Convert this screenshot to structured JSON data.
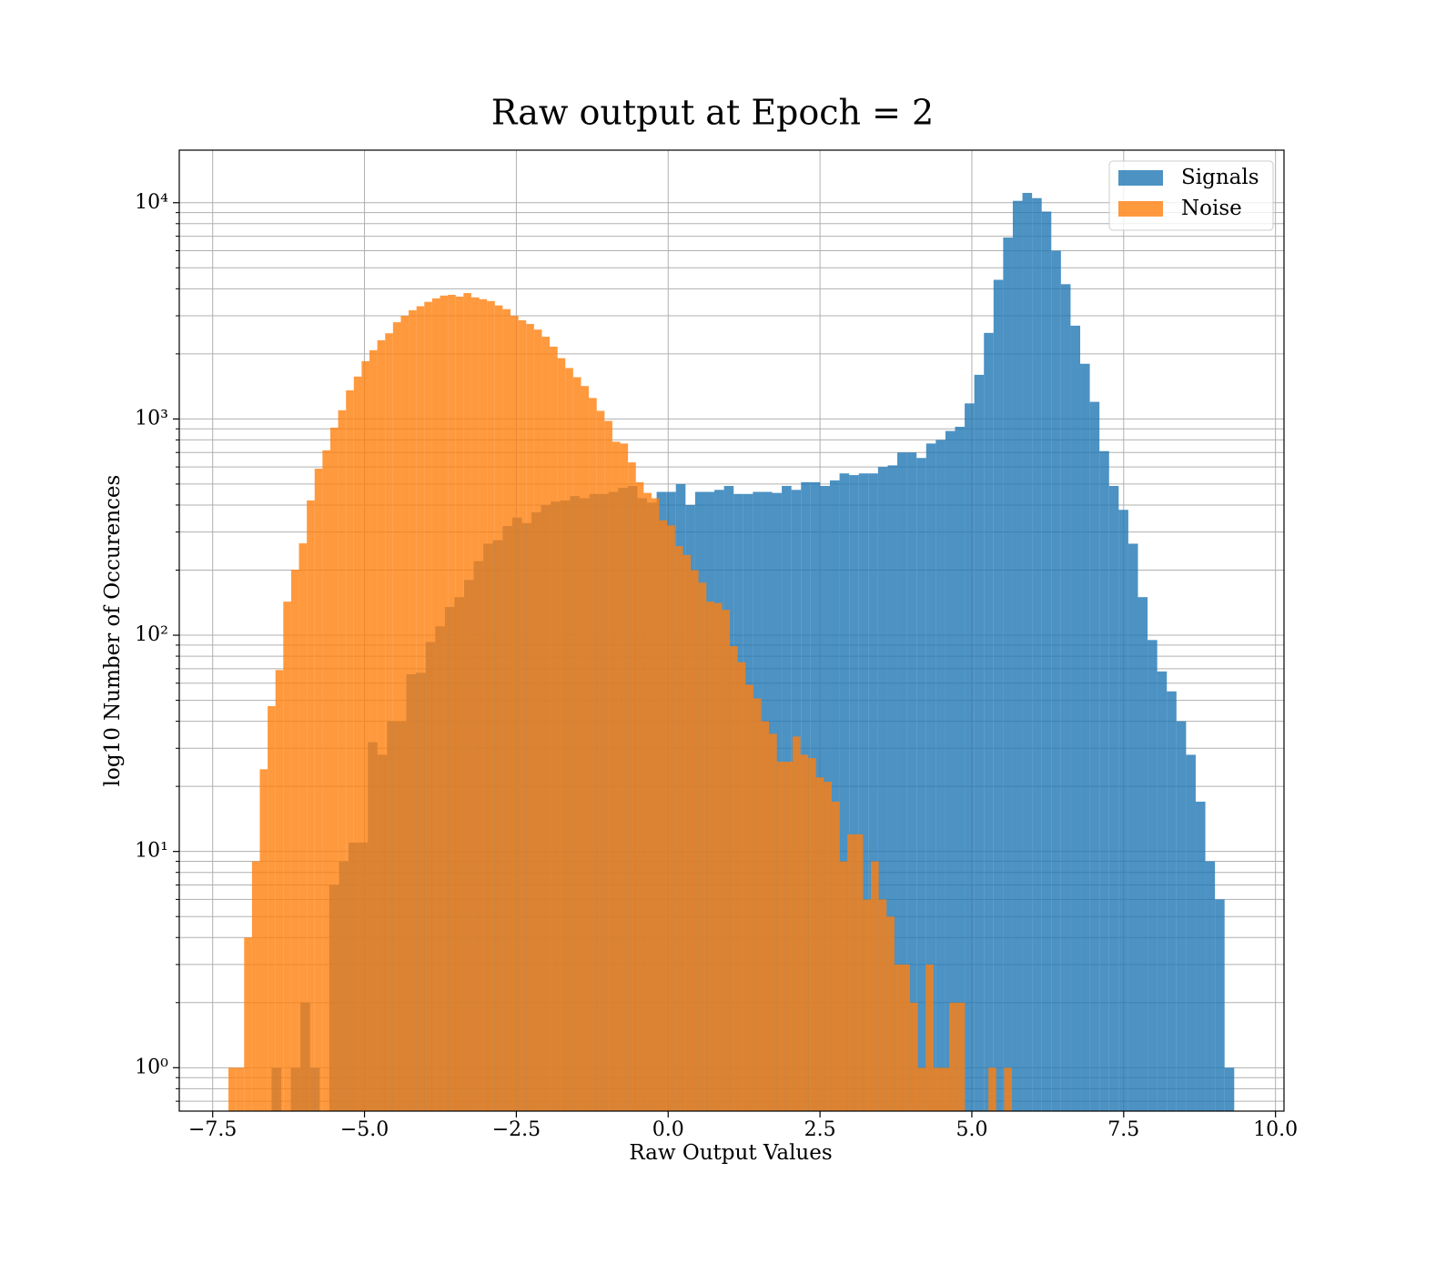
{
  "chart_data": {
    "type": "histogram",
    "title": "Raw output at Epoch = 2",
    "x_label": "Raw Output Values",
    "y_label": "log10 Number of Occurences",
    "xlim": [
      -8.05,
      10.14
    ],
    "ylim": [
      0.63,
      17500
    ],
    "log_y": true,
    "grid": true,
    "legend": "upper right",
    "alpha": 0.8,
    "xticks": [
      {
        "value": -7.5,
        "label": "−7.5"
      },
      {
        "value": -5,
        "label": "−5.0"
      },
      {
        "value": -2.5,
        "label": "−2.5"
      },
      {
        "value": 0,
        "label": "0.0"
      },
      2.5,
      {
        "value": 5,
        "label": "5.0"
      },
      7.5,
      {
        "value": 10,
        "label": "10.0"
      }
    ],
    "yticks": [
      {
        "value": 1,
        "label": "10⁰"
      },
      {
        "value": 10,
        "label": "10¹"
      },
      {
        "value": 100,
        "label": "10²"
      },
      {
        "value": 1000,
        "label": "10³"
      },
      {
        "value": 10000,
        "label": "10⁴"
      }
    ],
    "yminorticks": [
      0.7,
      0.8,
      0.9,
      2,
      3,
      4,
      5,
      6,
      7,
      8,
      9,
      20,
      30,
      40,
      50,
      60,
      70,
      80,
      90,
      200,
      300,
      400,
      500,
      600,
      700,
      800,
      900,
      2000,
      3000,
      4000,
      5000,
      6000,
      7000,
      8000,
      9000
    ],
    "series": [
      {
        "name": "Signals",
        "color": "#1f77b4",
        "bins": [
          -6.53,
          -6.3715,
          -6.213,
          -6.0545,
          -5.896,
          -5.7375,
          -5.579,
          -5.4205,
          -5.262,
          -5.1035,
          -4.945,
          -4.7865,
          -4.628,
          -4.4695,
          -4.311,
          -4.1525,
          -3.994,
          -3.8355,
          -3.677,
          -3.5185,
          -3.36,
          -3.2015,
          -3.043,
          -2.8845,
          -2.726,
          -2.5675,
          -2.409,
          -2.2505,
          -2.092,
          -1.9335,
          -1.775,
          -1.6165,
          -1.458,
          -1.2995,
          -1.141,
          -0.9825,
          -0.824,
          -0.6655,
          -0.507,
          -0.3485,
          -0.19,
          -0.0315,
          0.127,
          0.2855,
          0.444,
          0.6025,
          0.761,
          0.9195,
          1.078,
          1.2365,
          1.395,
          1.5535,
          1.712,
          1.8705,
          2.029,
          2.1875,
          2.346,
          2.5045,
          2.663,
          2.8215,
          2.98,
          3.1385,
          3.297,
          3.4555,
          3.614,
          3.7725,
          3.931,
          4.0895,
          4.248,
          4.4065,
          4.565,
          4.7235,
          4.882,
          5.0405,
          5.199,
          5.3575,
          5.516,
          5.6745,
          5.833,
          5.9915,
          6.15,
          6.3085,
          6.467,
          6.6255,
          6.784,
          6.9425,
          7.101,
          7.2595,
          7.418,
          7.5765,
          7.735,
          7.8935,
          8.052,
          8.2105,
          8.369,
          8.5275,
          8.686,
          8.8445,
          9.003,
          9.1615,
          9.32
        ],
        "values": [
          1,
          0,
          1,
          2,
          1,
          0,
          7,
          9,
          11,
          11,
          32,
          28,
          40,
          40,
          66,
          67,
          93,
          110,
          135,
          150,
          180,
          220,
          265,
          275,
          320,
          350,
          330,
          370,
          400,
          415,
          420,
          440,
          430,
          450,
          450,
          460,
          480,
          490,
          430,
          410,
          460,
          460,
          500,
          400,
          460,
          460,
          470,
          490,
          450,
          450,
          460,
          460,
          455,
          490,
          470,
          510,
          510,
          490,
          520,
          560,
          550,
          560,
          560,
          600,
          610,
          700,
          700,
          660,
          770,
          800,
          880,
          920,
          1180,
          1600,
          2500,
          4400,
          6900,
          10200,
          11100,
          10500,
          9100,
          6000,
          4200,
          2700,
          1800,
          1200,
          710,
          490,
          380,
          265,
          150,
          95,
          68,
          55,
          40,
          28,
          17,
          9,
          6,
          1
        ]
      },
      {
        "name": "Noise",
        "color": "#ff7f0e",
        "bins": [
          -7.24,
          -7.111,
          -6.982,
          -6.853,
          -6.724,
          -6.595,
          -6.466,
          -6.337,
          -6.208,
          -6.079,
          -5.95,
          -5.821,
          -5.692,
          -5.563,
          -5.434,
          -5.305,
          -5.176,
          -5.047,
          -4.918,
          -4.789,
          -4.66,
          -4.531,
          -4.402,
          -4.273,
          -4.144,
          -4.015,
          -3.886,
          -3.757,
          -3.628,
          -3.499,
          -3.37,
          -3.241,
          -3.112,
          -2.983,
          -2.854,
          -2.725,
          -2.596,
          -2.467,
          -2.338,
          -2.209,
          -2.08,
          -1.951,
          -1.822,
          -1.693,
          -1.564,
          -1.435,
          -1.306,
          -1.177,
          -1.048,
          -0.919,
          -0.79,
          -0.661,
          -0.532,
          -0.403,
          -0.274,
          -0.145,
          -0.016,
          0.113,
          0.242,
          0.371,
          0.5,
          0.629,
          0.758,
          0.887,
          1.016,
          1.145,
          1.274,
          1.403,
          1.532,
          1.661,
          1.79,
          1.919,
          2.048,
          2.177,
          2.306,
          2.435,
          2.564,
          2.693,
          2.822,
          2.951,
          3.08,
          3.209,
          3.338,
          3.467,
          3.596,
          3.725,
          3.854,
          3.983,
          4.112,
          4.241,
          4.37,
          4.499,
          4.628,
          4.757,
          4.886,
          5.015,
          5.144,
          5.273,
          5.402,
          5.531,
          5.66
        ],
        "values": [
          1,
          1,
          4,
          9,
          24,
          47,
          69,
          143,
          201,
          266,
          420,
          589,
          716,
          912,
          1097,
          1356,
          1570,
          1850,
          2080,
          2312,
          2490,
          2800,
          3000,
          3180,
          3320,
          3480,
          3610,
          3720,
          3750,
          3680,
          3820,
          3650,
          3580,
          3510,
          3350,
          3220,
          3000,
          2860,
          2750,
          2590,
          2400,
          2160,
          1910,
          1720,
          1560,
          1420,
          1250,
          1090,
          980,
          785,
          770,
          630,
          510,
          455,
          430,
          340,
          322,
          258,
          235,
          200,
          175,
          143,
          141,
          131,
          89,
          75,
          59,
          51,
          40,
          35,
          26,
          26,
          34,
          28,
          27,
          22,
          21,
          17,
          9,
          12,
          12,
          6,
          9,
          6,
          5,
          3,
          3,
          2,
          1,
          3,
          1,
          1,
          2,
          2,
          0,
          0,
          0,
          1,
          0,
          1
        ]
      }
    ]
  }
}
